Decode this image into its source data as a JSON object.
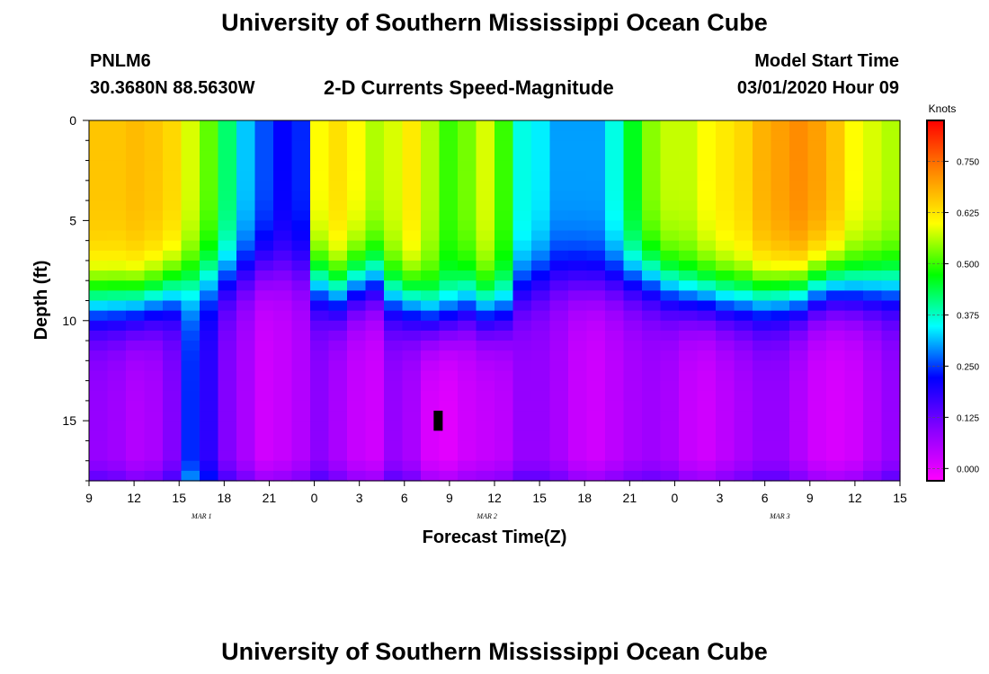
{
  "header": {
    "title": "University of Southern Mississippi Ocean Cube",
    "station": "PNLM6",
    "coordinates": "30.3680N 88.5630W",
    "subtitle": "2-D Currents Speed-Magnitude",
    "model_start_label": "Model Start Time",
    "model_start_value": "03/01/2020 Hour 09"
  },
  "footer": {
    "title": "University of Southern Mississippi Ocean Cube"
  },
  "chart_data": {
    "type": "heatmap",
    "title": "2-D Currents Speed-Magnitude",
    "xlabel": "Forecast Time(Z)",
    "ylabel": "Depth (ft)",
    "x_range_hours": [
      0,
      54
    ],
    "y_range": [
      0,
      18
    ],
    "y_inverted": true,
    "x_ticks": [
      "9",
      "12",
      "15",
      "18",
      "21",
      "0",
      "3",
      "6",
      "9",
      "12",
      "15",
      "18",
      "21",
      "0",
      "3",
      "6",
      "9",
      "12",
      "15"
    ],
    "x_date_labels": [
      {
        "hour": 7.5,
        "label": "MAR  1"
      },
      {
        "hour": 26.5,
        "label": "MAR  2"
      },
      {
        "hour": 46,
        "label": "MAR  3"
      }
    ],
    "y_ticks": [
      0,
      5,
      10,
      15
    ],
    "colorbar": {
      "title": "Knots",
      "range": [
        -0.03,
        0.85
      ],
      "ticks": [
        "0.000",
        "0.125",
        "0.250",
        "0.375",
        "0.500",
        "0.625",
        "0.750"
      ],
      "colors": [
        "#ff00ff",
        "#8800ff",
        "#0000ff",
        "#00ffff",
        "#00ff00",
        "#ffff00",
        "#ff8800",
        "#ff0000"
      ]
    },
    "grid": false,
    "legend_position": "right",
    "surface_speed_profile": [
      0.66,
      0.66,
      0.67,
      0.66,
      0.64,
      0.58,
      0.52,
      0.42,
      0.32,
      0.26,
      0.22,
      0.24,
      0.6,
      0.63,
      0.6,
      0.56,
      0.58,
      0.62,
      0.56,
      0.5,
      0.53,
      0.58,
      0.5,
      0.36,
      0.34,
      0.3,
      0.3,
      0.3,
      0.36,
      0.46,
      0.54,
      0.57,
      0.57,
      0.6,
      0.62,
      0.64,
      0.68,
      0.7,
      0.72,
      0.7,
      0.66,
      0.6,
      0.58,
      0.56
    ],
    "decay_depth_ft": [
      3.5,
      3.5,
      3.5,
      3.3,
      3.0,
      2.6,
      2.4,
      2.2,
      2.0,
      1.8,
      1.8,
      1.9,
      2.6,
      3.0,
      2.6,
      2.4,
      3.2,
      3.5,
      4.0,
      4.0,
      3.6,
      3.8,
      3.8,
      2.8,
      2.4,
      2.2,
      2.3,
      2.4,
      2.3,
      2.3,
      2.4,
      2.8,
      3.1,
      3.2,
      3.3,
      3.3,
      3.3,
      3.2,
      3.1,
      2.8,
      2.7,
      2.8,
      2.8,
      2.8
    ],
    "bottom_speed_profile": [
      0.08,
      0.07,
      0.05,
      0.06,
      0.1,
      0.24,
      0.18,
      0.1,
      0.06,
      0.02,
      0.03,
      0.05,
      0.09,
      0.06,
      0.03,
      0.02,
      0.08,
      0.06,
      0.01,
      0.0,
      0.02,
      0.03,
      0.04,
      0.08,
      0.08,
      0.06,
      0.03,
      0.02,
      0.04,
      0.06,
      0.07,
      0.06,
      0.03,
      0.02,
      0.04,
      0.06,
      0.08,
      0.08,
      0.05,
      0.02,
      0.01,
      0.02,
      0.05,
      0.08
    ],
    "missing_cell": {
      "hour": 23.25,
      "depth_ft": 15
    }
  }
}
